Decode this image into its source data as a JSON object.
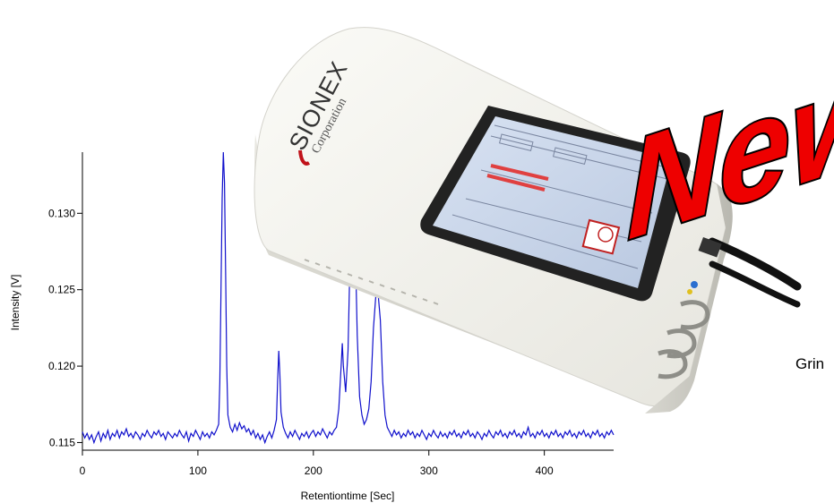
{
  "device": {
    "brand": "SIONEX",
    "brand_sub": "Corporation"
  },
  "badge": {
    "text": "New",
    "fill_color": "#ee0000",
    "outline_color": "#000000"
  },
  "side_text": "Grin",
  "chart_data": {
    "type": "line",
    "xlabel": "Retentiontime [Sec]",
    "ylabel": "Intensity [V]",
    "xlim": [
      0,
      460
    ],
    "ylim": [
      0.1145,
      0.134
    ],
    "x_ticks": [
      "0",
      "100",
      "200",
      "300",
      "400"
    ],
    "y_ticks": [
      "0.115",
      "0.120",
      "0.125",
      "0.130"
    ],
    "line_color": "#1010cc",
    "series": [
      {
        "values": [
          [
            0,
            0.1157
          ],
          [
            2,
            0.1153
          ],
          [
            4,
            0.1156
          ],
          [
            6,
            0.1152
          ],
          [
            8,
            0.1155
          ],
          [
            10,
            0.115
          ],
          [
            12,
            0.1154
          ],
          [
            14,
            0.1157
          ],
          [
            16,
            0.1151
          ],
          [
            18,
            0.1156
          ],
          [
            20,
            0.1153
          ],
          [
            22,
            0.1158
          ],
          [
            24,
            0.1152
          ],
          [
            26,
            0.1156
          ],
          [
            28,
            0.1154
          ],
          [
            30,
            0.1158
          ],
          [
            32,
            0.1153
          ],
          [
            34,
            0.1157
          ],
          [
            36,
            0.1155
          ],
          [
            38,
            0.1159
          ],
          [
            40,
            0.1154
          ],
          [
            42,
            0.1156
          ],
          [
            44,
            0.1153
          ],
          [
            46,
            0.1157
          ],
          [
            48,
            0.1155
          ],
          [
            50,
            0.1152
          ],
          [
            52,
            0.1156
          ],
          [
            54,
            0.1154
          ],
          [
            56,
            0.1158
          ],
          [
            58,
            0.1155
          ],
          [
            60,
            0.1153
          ],
          [
            62,
            0.1157
          ],
          [
            64,
            0.1155
          ],
          [
            66,
            0.1158
          ],
          [
            68,
            0.1154
          ],
          [
            70,
            0.1156
          ],
          [
            72,
            0.1152
          ],
          [
            74,
            0.1157
          ],
          [
            76,
            0.1155
          ],
          [
            78,
            0.1153
          ],
          [
            80,
            0.1156
          ],
          [
            82,
            0.1154
          ],
          [
            84,
            0.1158
          ],
          [
            86,
            0.1155
          ],
          [
            88,
            0.1153
          ],
          [
            90,
            0.1157
          ],
          [
            92,
            0.1151
          ],
          [
            94,
            0.1156
          ],
          [
            96,
            0.1154
          ],
          [
            98,
            0.1158
          ],
          [
            100,
            0.1155
          ],
          [
            102,
            0.1152
          ],
          [
            104,
            0.1157
          ],
          [
            106,
            0.1154
          ],
          [
            108,
            0.1156
          ],
          [
            110,
            0.1153
          ],
          [
            112,
            0.1157
          ],
          [
            114,
            0.1155
          ],
          [
            116,
            0.1158
          ],
          [
            118,
            0.1162
          ],
          [
            119,
            0.119
          ],
          [
            120,
            0.125
          ],
          [
            121,
            0.131
          ],
          [
            122,
            0.134
          ],
          [
            123,
            0.132
          ],
          [
            124,
            0.126
          ],
          [
            125,
            0.12
          ],
          [
            126,
            0.1168
          ],
          [
            128,
            0.116
          ],
          [
            130,
            0.1157
          ],
          [
            132,
            0.1162
          ],
          [
            134,
            0.1158
          ],
          [
            136,
            0.1163
          ],
          [
            138,
            0.1159
          ],
          [
            140,
            0.1161
          ],
          [
            142,
            0.1157
          ],
          [
            144,
            0.1159
          ],
          [
            146,
            0.1155
          ],
          [
            148,
            0.1158
          ],
          [
            150,
            0.1153
          ],
          [
            152,
            0.1156
          ],
          [
            154,
            0.1152
          ],
          [
            156,
            0.1155
          ],
          [
            158,
            0.115
          ],
          [
            160,
            0.1154
          ],
          [
            162,
            0.1157
          ],
          [
            164,
            0.1153
          ],
          [
            166,
            0.1158
          ],
          [
            168,
            0.1165
          ],
          [
            169,
            0.119
          ],
          [
            170,
            0.121
          ],
          [
            171,
            0.1195
          ],
          [
            172,
            0.117
          ],
          [
            174,
            0.116
          ],
          [
            176,
            0.1156
          ],
          [
            178,
            0.1153
          ],
          [
            180,
            0.1157
          ],
          [
            182,
            0.1154
          ],
          [
            184,
            0.1158
          ],
          [
            186,
            0.1155
          ],
          [
            188,
            0.1152
          ],
          [
            190,
            0.1156
          ],
          [
            192,
            0.1154
          ],
          [
            194,
            0.1157
          ],
          [
            196,
            0.1153
          ],
          [
            198,
            0.1156
          ],
          [
            200,
            0.1158
          ],
          [
            202,
            0.1154
          ],
          [
            204,
            0.1157
          ],
          [
            206,
            0.1155
          ],
          [
            208,
            0.1159
          ],
          [
            210,
            0.1156
          ],
          [
            212,
            0.1153
          ],
          [
            214,
            0.1157
          ],
          [
            216,
            0.1155
          ],
          [
            218,
            0.1158
          ],
          [
            220,
            0.116
          ],
          [
            222,
            0.1172
          ],
          [
            224,
            0.12
          ],
          [
            225,
            0.1215
          ],
          [
            226,
            0.12
          ],
          [
            228,
            0.1183
          ],
          [
            230,
            0.121
          ],
          [
            232,
            0.128
          ],
          [
            234,
            0.1327
          ],
          [
            236,
            0.129
          ],
          [
            238,
            0.122
          ],
          [
            240,
            0.118
          ],
          [
            242,
            0.1168
          ],
          [
            244,
            0.1162
          ],
          [
            246,
            0.1165
          ],
          [
            248,
            0.1172
          ],
          [
            250,
            0.119
          ],
          [
            252,
            0.1225
          ],
          [
            254,
            0.1245
          ],
          [
            256,
            0.1248
          ],
          [
            258,
            0.123
          ],
          [
            260,
            0.119
          ],
          [
            262,
            0.1168
          ],
          [
            264,
            0.116
          ],
          [
            266,
            0.1157
          ],
          [
            268,
            0.1154
          ],
          [
            270,
            0.1158
          ],
          [
            272,
            0.1155
          ],
          [
            274,
            0.1157
          ],
          [
            276,
            0.1153
          ],
          [
            278,
            0.1156
          ],
          [
            280,
            0.1154
          ],
          [
            282,
            0.1158
          ],
          [
            284,
            0.1155
          ],
          [
            286,
            0.1157
          ],
          [
            288,
            0.1153
          ],
          [
            290,
            0.1156
          ],
          [
            292,
            0.1154
          ],
          [
            294,
            0.1158
          ],
          [
            296,
            0.1155
          ],
          [
            298,
            0.1152
          ],
          [
            300,
            0.1156
          ],
          [
            302,
            0.1154
          ],
          [
            304,
            0.1158
          ],
          [
            306,
            0.1155
          ],
          [
            308,
            0.1153
          ],
          [
            310,
            0.1157
          ],
          [
            312,
            0.1154
          ],
          [
            314,
            0.1156
          ],
          [
            316,
            0.1153
          ],
          [
            318,
            0.1157
          ],
          [
            320,
            0.1155
          ],
          [
            322,
            0.1158
          ],
          [
            324,
            0.1154
          ],
          [
            326,
            0.1156
          ],
          [
            328,
            0.1153
          ],
          [
            330,
            0.1157
          ],
          [
            332,
            0.1155
          ],
          [
            334,
            0.1158
          ],
          [
            336,
            0.1154
          ],
          [
            338,
            0.1156
          ],
          [
            340,
            0.1153
          ],
          [
            342,
            0.1157
          ],
          [
            344,
            0.1155
          ],
          [
            346,
            0.1152
          ],
          [
            348,
            0.1156
          ],
          [
            350,
            0.1154
          ],
          [
            352,
            0.1158
          ],
          [
            354,
            0.1155
          ],
          [
            356,
            0.1153
          ],
          [
            358,
            0.1157
          ],
          [
            360,
            0.1155
          ],
          [
            362,
            0.1158
          ],
          [
            364,
            0.1154
          ],
          [
            366,
            0.1156
          ],
          [
            368,
            0.1153
          ],
          [
            370,
            0.1157
          ],
          [
            372,
            0.1155
          ],
          [
            374,
            0.1158
          ],
          [
            376,
            0.1154
          ],
          [
            378,
            0.1156
          ],
          [
            380,
            0.1153
          ],
          [
            382,
            0.1157
          ],
          [
            384,
            0.1155
          ],
          [
            386,
            0.116
          ],
          [
            388,
            0.1154
          ],
          [
            390,
            0.1156
          ],
          [
            392,
            0.1153
          ],
          [
            394,
            0.1157
          ],
          [
            396,
            0.1155
          ],
          [
            398,
            0.1158
          ],
          [
            400,
            0.1154
          ],
          [
            402,
            0.1156
          ],
          [
            404,
            0.1153
          ],
          [
            406,
            0.1157
          ],
          [
            408,
            0.1155
          ],
          [
            410,
            0.1158
          ],
          [
            412,
            0.1154
          ],
          [
            414,
            0.1156
          ],
          [
            416,
            0.1153
          ],
          [
            418,
            0.1157
          ],
          [
            420,
            0.1155
          ],
          [
            422,
            0.1158
          ],
          [
            424,
            0.1154
          ],
          [
            426,
            0.1156
          ],
          [
            428,
            0.1153
          ],
          [
            430,
            0.1157
          ],
          [
            432,
            0.1155
          ],
          [
            434,
            0.1158
          ],
          [
            436,
            0.1154
          ],
          [
            438,
            0.1156
          ],
          [
            440,
            0.1153
          ],
          [
            442,
            0.1157
          ],
          [
            444,
            0.1155
          ],
          [
            446,
            0.1158
          ],
          [
            448,
            0.1154
          ],
          [
            450,
            0.1156
          ],
          [
            452,
            0.1153
          ],
          [
            454,
            0.1157
          ],
          [
            456,
            0.1155
          ],
          [
            458,
            0.1158
          ],
          [
            460,
            0.1155
          ]
        ]
      }
    ]
  }
}
